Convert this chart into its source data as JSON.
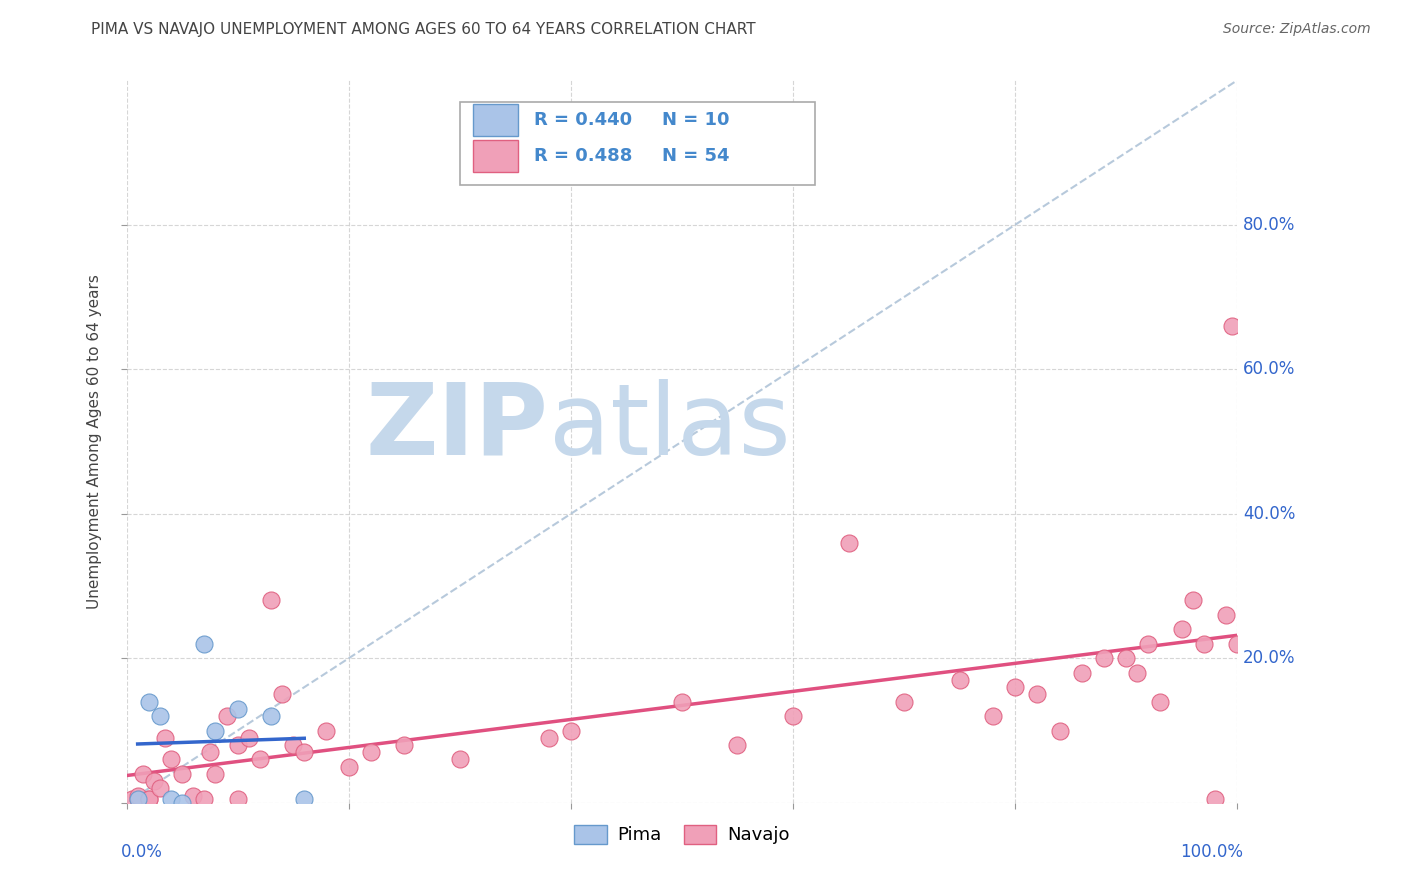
{
  "title": "PIMA VS NAVAJO UNEMPLOYMENT AMONG AGES 60 TO 64 YEARS CORRELATION CHART",
  "source": "Source: ZipAtlas.com",
  "ylabel": "Unemployment Among Ages 60 to 64 years",
  "xlim": [
    0.0,
    1.0
  ],
  "ylim": [
    0.0,
    1.0
  ],
  "xticks": [
    0.0,
    0.2,
    0.4,
    0.6,
    0.8,
    1.0
  ],
  "yticks": [
    0.0,
    0.2,
    0.4,
    0.6,
    0.8
  ],
  "background_color": "#ffffff",
  "watermark_ZIP_color": "#c5d8eb",
  "watermark_atlas_color": "#c5d8eb",
  "grid_color": "#cccccc",
  "pima_color": "#aac4e8",
  "navajo_color": "#f0a0b8",
  "pima_edge_color": "#6699cc",
  "navajo_edge_color": "#e06080",
  "pima_R": 0.44,
  "pima_N": 10,
  "navajo_R": 0.488,
  "navajo_N": 54,
  "legend_color": "#4488cc",
  "pima_trend_color": "#3366cc",
  "navajo_trend_color": "#e05080",
  "diagonal_color": "#b0c4d8",
  "pima_x": [
    0.01,
    0.02,
    0.03,
    0.04,
    0.05,
    0.07,
    0.08,
    0.1,
    0.13,
    0.16
  ],
  "pima_y": [
    0.005,
    0.14,
    0.12,
    0.005,
    0.0,
    0.22,
    0.1,
    0.13,
    0.12,
    0.005
  ],
  "navajo_x": [
    0.005,
    0.01,
    0.01,
    0.015,
    0.02,
    0.02,
    0.025,
    0.03,
    0.035,
    0.04,
    0.05,
    0.06,
    0.07,
    0.075,
    0.08,
    0.09,
    0.1,
    0.1,
    0.11,
    0.12,
    0.13,
    0.14,
    0.15,
    0.16,
    0.18,
    0.2,
    0.22,
    0.25,
    0.3,
    0.38,
    0.4,
    0.5,
    0.55,
    0.6,
    0.65,
    0.7,
    0.75,
    0.78,
    0.8,
    0.82,
    0.84,
    0.86,
    0.88,
    0.9,
    0.91,
    0.92,
    0.93,
    0.95,
    0.96,
    0.97,
    0.98,
    0.99,
    0.995,
    1.0
  ],
  "navajo_y": [
    0.005,
    0.005,
    0.01,
    0.04,
    0.005,
    0.005,
    0.03,
    0.02,
    0.09,
    0.06,
    0.04,
    0.01,
    0.005,
    0.07,
    0.04,
    0.12,
    0.08,
    0.005,
    0.09,
    0.06,
    0.28,
    0.15,
    0.08,
    0.07,
    0.1,
    0.05,
    0.07,
    0.08,
    0.06,
    0.09,
    0.1,
    0.14,
    0.08,
    0.12,
    0.36,
    0.14,
    0.17,
    0.12,
    0.16,
    0.15,
    0.1,
    0.18,
    0.2,
    0.2,
    0.18,
    0.22,
    0.14,
    0.24,
    0.28,
    0.22,
    0.005,
    0.26,
    0.66,
    0.22
  ]
}
